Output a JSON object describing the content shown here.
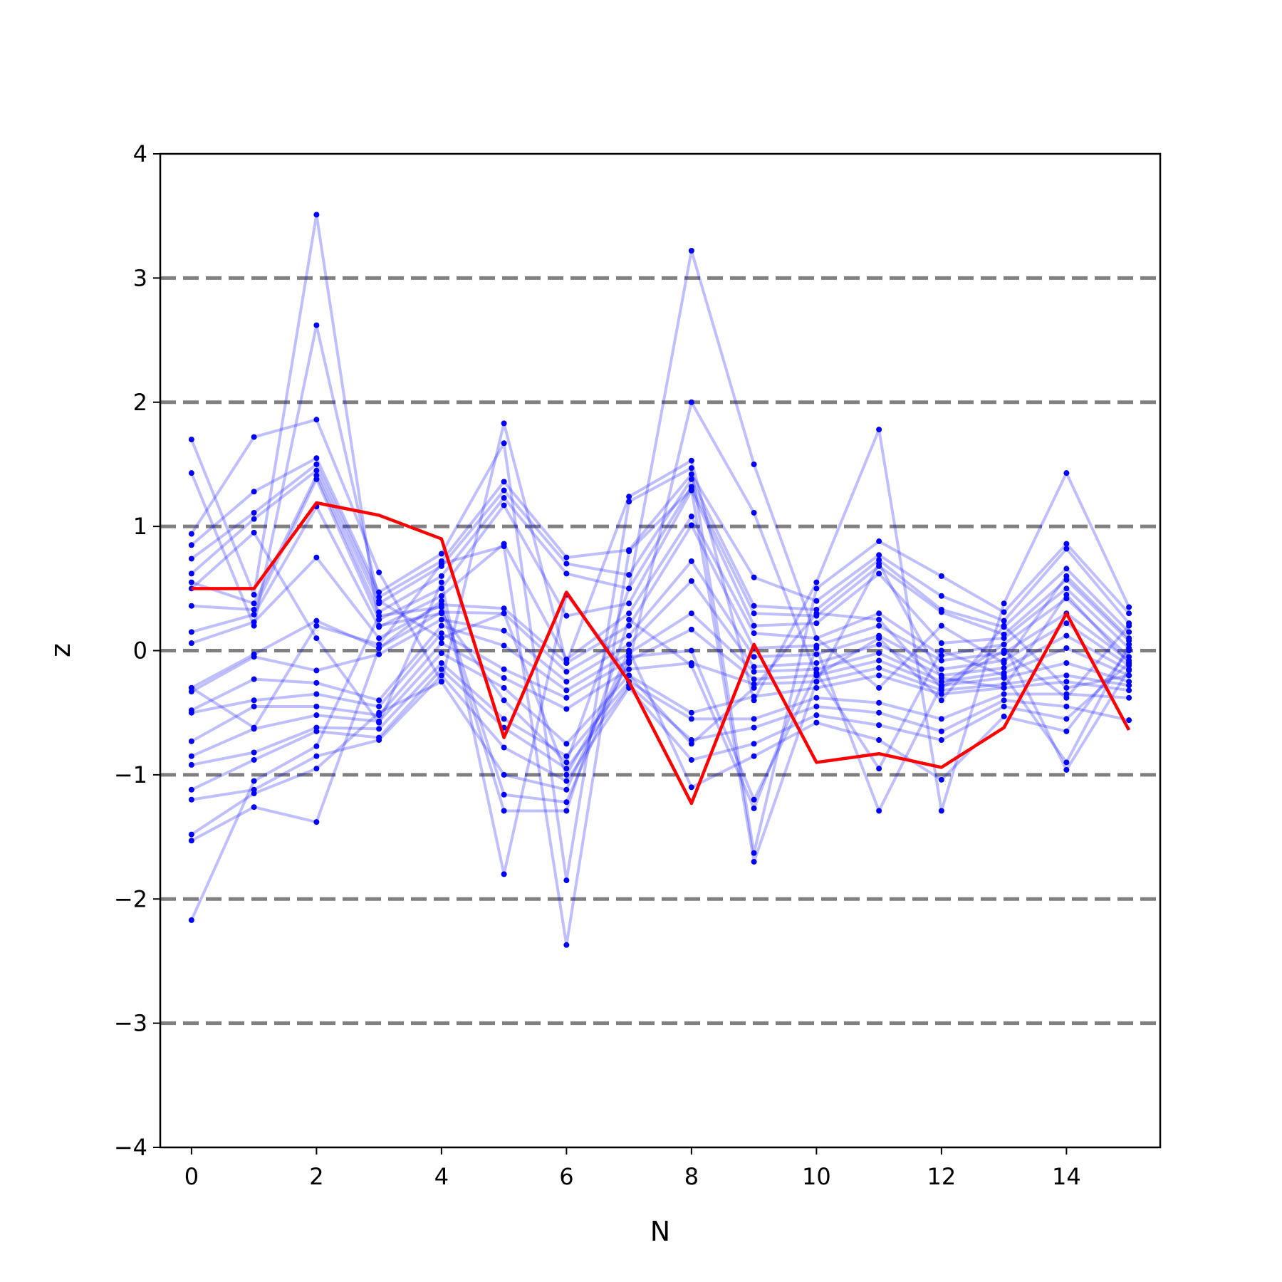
{
  "chart_data": {
    "type": "line",
    "xlabel": "N",
    "ylabel": "z",
    "xlim": [
      -0.5,
      15.5
    ],
    "ylim": [
      -4,
      4
    ],
    "xticks": [
      0,
      2,
      4,
      6,
      8,
      10,
      12,
      14
    ],
    "xtick_labels": [
      "0",
      "2",
      "4",
      "6",
      "8",
      "10",
      "12",
      "14"
    ],
    "yticks": [
      -4,
      -3,
      -2,
      -1,
      0,
      1,
      2,
      3,
      4
    ],
    "ytick_labels": [
      "−4",
      "−3",
      "−2",
      "−1",
      "0",
      "1",
      "2",
      "3",
      "4"
    ],
    "reference_lines": [
      -3,
      -2,
      -1,
      0,
      1,
      2,
      3
    ],
    "reference_line_color": "#808080",
    "grid": false,
    "background_color": "#ffffff",
    "x": [
      0,
      1,
      2,
      3,
      4,
      5,
      6,
      7,
      8,
      9,
      10,
      11,
      12,
      13,
      14,
      15
    ],
    "highlight_series": {
      "color": "#ff0000",
      "values": [
        0.5,
        0.5,
        1.19,
        1.09,
        0.9,
        -0.7,
        0.47,
        -0.25,
        -1.23,
        0.05,
        -0.9,
        -0.83,
        -0.94,
        -0.62,
        0.3,
        -0.64
      ]
    },
    "background_series_color": "#0000ff",
    "background_series_opacity": 0.25,
    "background_series": [
      [
        1.7,
        0.45,
        3.51,
        0.2,
        0.3,
        -0.4,
        -0.9,
        0.5,
        3.22,
        1.5,
        0.1,
        -0.3,
        0.2,
        -0.1,
        0.6,
        0.1
      ],
      [
        1.43,
        0.2,
        2.62,
        0.4,
        0.1,
        0.3,
        -1.0,
        -0.1,
        2.0,
        1.11,
        -0.2,
        0.1,
        -0.4,
        0.2,
        -0.3,
        -0.2
      ],
      [
        0.94,
        1.72,
        1.86,
        0.63,
        -0.25,
        1.83,
        -0.1,
        1.24,
        1.53,
        -0.4,
        0.55,
        1.78,
        -1.29,
        0.38,
        1.43,
        0.35
      ],
      [
        0.85,
        1.28,
        1.55,
        0.47,
        0.78,
        1.67,
        -1.85,
        1.2,
        1.47,
        -1.63,
        0.5,
        0.88,
        0.6,
        0.31,
        0.86,
        0.3
      ],
      [
        0.74,
        1.11,
        1.5,
        0.43,
        0.72,
        1.36,
        0.75,
        0.81,
        1.42,
        0.59,
        0.4,
        0.77,
        0.44,
        0.24,
        0.82,
        0.22
      ],
      [
        0.62,
        1.06,
        1.45,
        0.38,
        0.68,
        1.29,
        0.7,
        0.61,
        1.38,
        0.36,
        0.33,
        0.73,
        0.33,
        0.19,
        0.66,
        0.15
      ],
      [
        0.55,
        0.38,
        1.41,
        0.31,
        0.6,
        1.23,
        0.62,
        0.5,
        1.32,
        0.3,
        0.28,
        0.68,
        0.31,
        0.13,
        0.57,
        0.08
      ],
      [
        0.36,
        0.33,
        1.38,
        0.25,
        0.5,
        1.17,
        0.28,
        0.38,
        1.29,
        0.2,
        0.22,
        0.62,
        0.06,
        0.1,
        0.5,
        0.02
      ],
      [
        0.15,
        0.29,
        1.16,
        0.19,
        0.44,
        0.86,
        -0.07,
        0.3,
        1.08,
        0.14,
        0.1,
        0.3,
        -0.04,
        0.05,
        0.42,
        -0.05
      ],
      [
        0.06,
        0.23,
        0.75,
        0.1,
        0.37,
        0.34,
        -0.1,
        0.2,
        1.01,
        0.02,
        0.04,
        0.2,
        -0.08,
        -0.02,
        0.3,
        -0.08
      ],
      [
        -0.3,
        -0.03,
        0.24,
        0.02,
        0.31,
        0.3,
        -0.17,
        0.12,
        0.72,
        -0.05,
        -0.03,
        0.12,
        -0.15,
        -0.08,
        0.22,
        -0.12
      ],
      [
        -0.33,
        -0.05,
        -0.16,
        -0.03,
        0.25,
        0.16,
        -0.25,
        0.05,
        0.56,
        -0.13,
        -0.1,
        0.05,
        -0.2,
        -0.14,
        0.12,
        -0.16
      ],
      [
        -0.48,
        -0.23,
        -0.26,
        -0.4,
        0.2,
        0.04,
        -0.32,
        -0.02,
        0.3,
        -0.17,
        -0.15,
        -0.02,
        -0.25,
        -0.18,
        0.02,
        -0.2
      ],
      [
        -0.5,
        -0.4,
        -0.35,
        -0.45,
        0.14,
        -0.15,
        -0.38,
        -0.08,
        0.17,
        -0.23,
        -0.2,
        -0.08,
        -0.28,
        -0.22,
        -0.1,
        -0.25
      ],
      [
        -0.73,
        -0.45,
        -0.45,
        -0.52,
        0.06,
        -0.22,
        -0.47,
        -0.15,
        -0.1,
        -0.27,
        -0.25,
        -0.14,
        -0.32,
        -0.27,
        -0.2,
        -0.28
      ],
      [
        -0.85,
        -0.63,
        -0.52,
        -0.57,
        -0.02,
        -0.3,
        -0.75,
        -0.2,
        -0.5,
        -0.37,
        -0.3,
        -0.2,
        -0.35,
        -0.3,
        -0.25,
        -0.32
      ],
      [
        -0.92,
        -0.82,
        -0.62,
        -0.63,
        -0.1,
        -0.55,
        -0.85,
        -0.25,
        -0.55,
        -0.55,
        -0.38,
        -0.42,
        -0.55,
        -0.35,
        -0.35,
        -0.38
      ],
      [
        -1.12,
        -0.88,
        -0.65,
        -0.7,
        -0.15,
        -0.62,
        -0.95,
        -0.28,
        -0.72,
        -0.62,
        -0.45,
        -0.5,
        -0.65,
        -0.4,
        -0.45,
        -0.56
      ],
      [
        -1.2,
        -1.12,
        -0.85,
        -0.72,
        -0.2,
        -0.78,
        -1.05,
        -0.3,
        -0.88,
        -0.75,
        -0.52,
        -0.6,
        -0.72,
        -0.45,
        -0.55,
        -0.1
      ],
      [
        -1.48,
        -1.15,
        -0.95,
        -0.5,
        -0.25,
        -1.0,
        -1.12,
        0.0,
        -1.1,
        -0.85,
        -0.58,
        -0.72,
        -1.04,
        -0.53,
        -0.65,
        0.0
      ],
      [
        -1.53,
        -1.26,
        -1.38,
        0.02,
        0.4,
        -1.16,
        -1.22,
        -0.05,
        0.0,
        -1.2,
        -0.18,
        -0.95,
        0.0,
        -0.2,
        -0.9,
        0.05
      ],
      [
        -2.17,
        -1.05,
        -0.77,
        0.28,
        0.35,
        -1.29,
        -1.29,
        0.25,
        -0.12,
        -1.27,
        0.02,
        -1.29,
        -0.28,
        0.05,
        -0.96,
        -0.15
      ],
      [
        0.5,
        0.95,
        0.1,
        -0.58,
        0.55,
        -1.8,
        0.45,
        -0.2,
        -0.75,
        -0.3,
        0.3,
        0.25,
        -0.3,
        0.0,
        -0.38,
        0.2
      ],
      [
        -0.3,
        -0.62,
        0.2,
        0.05,
        0.7,
        0.84,
        -2.37,
        0.8,
        1.3,
        -1.7,
        -0.25,
        0.7,
        -0.22,
        -0.3,
        0.45,
        -0.1
      ]
    ]
  }
}
